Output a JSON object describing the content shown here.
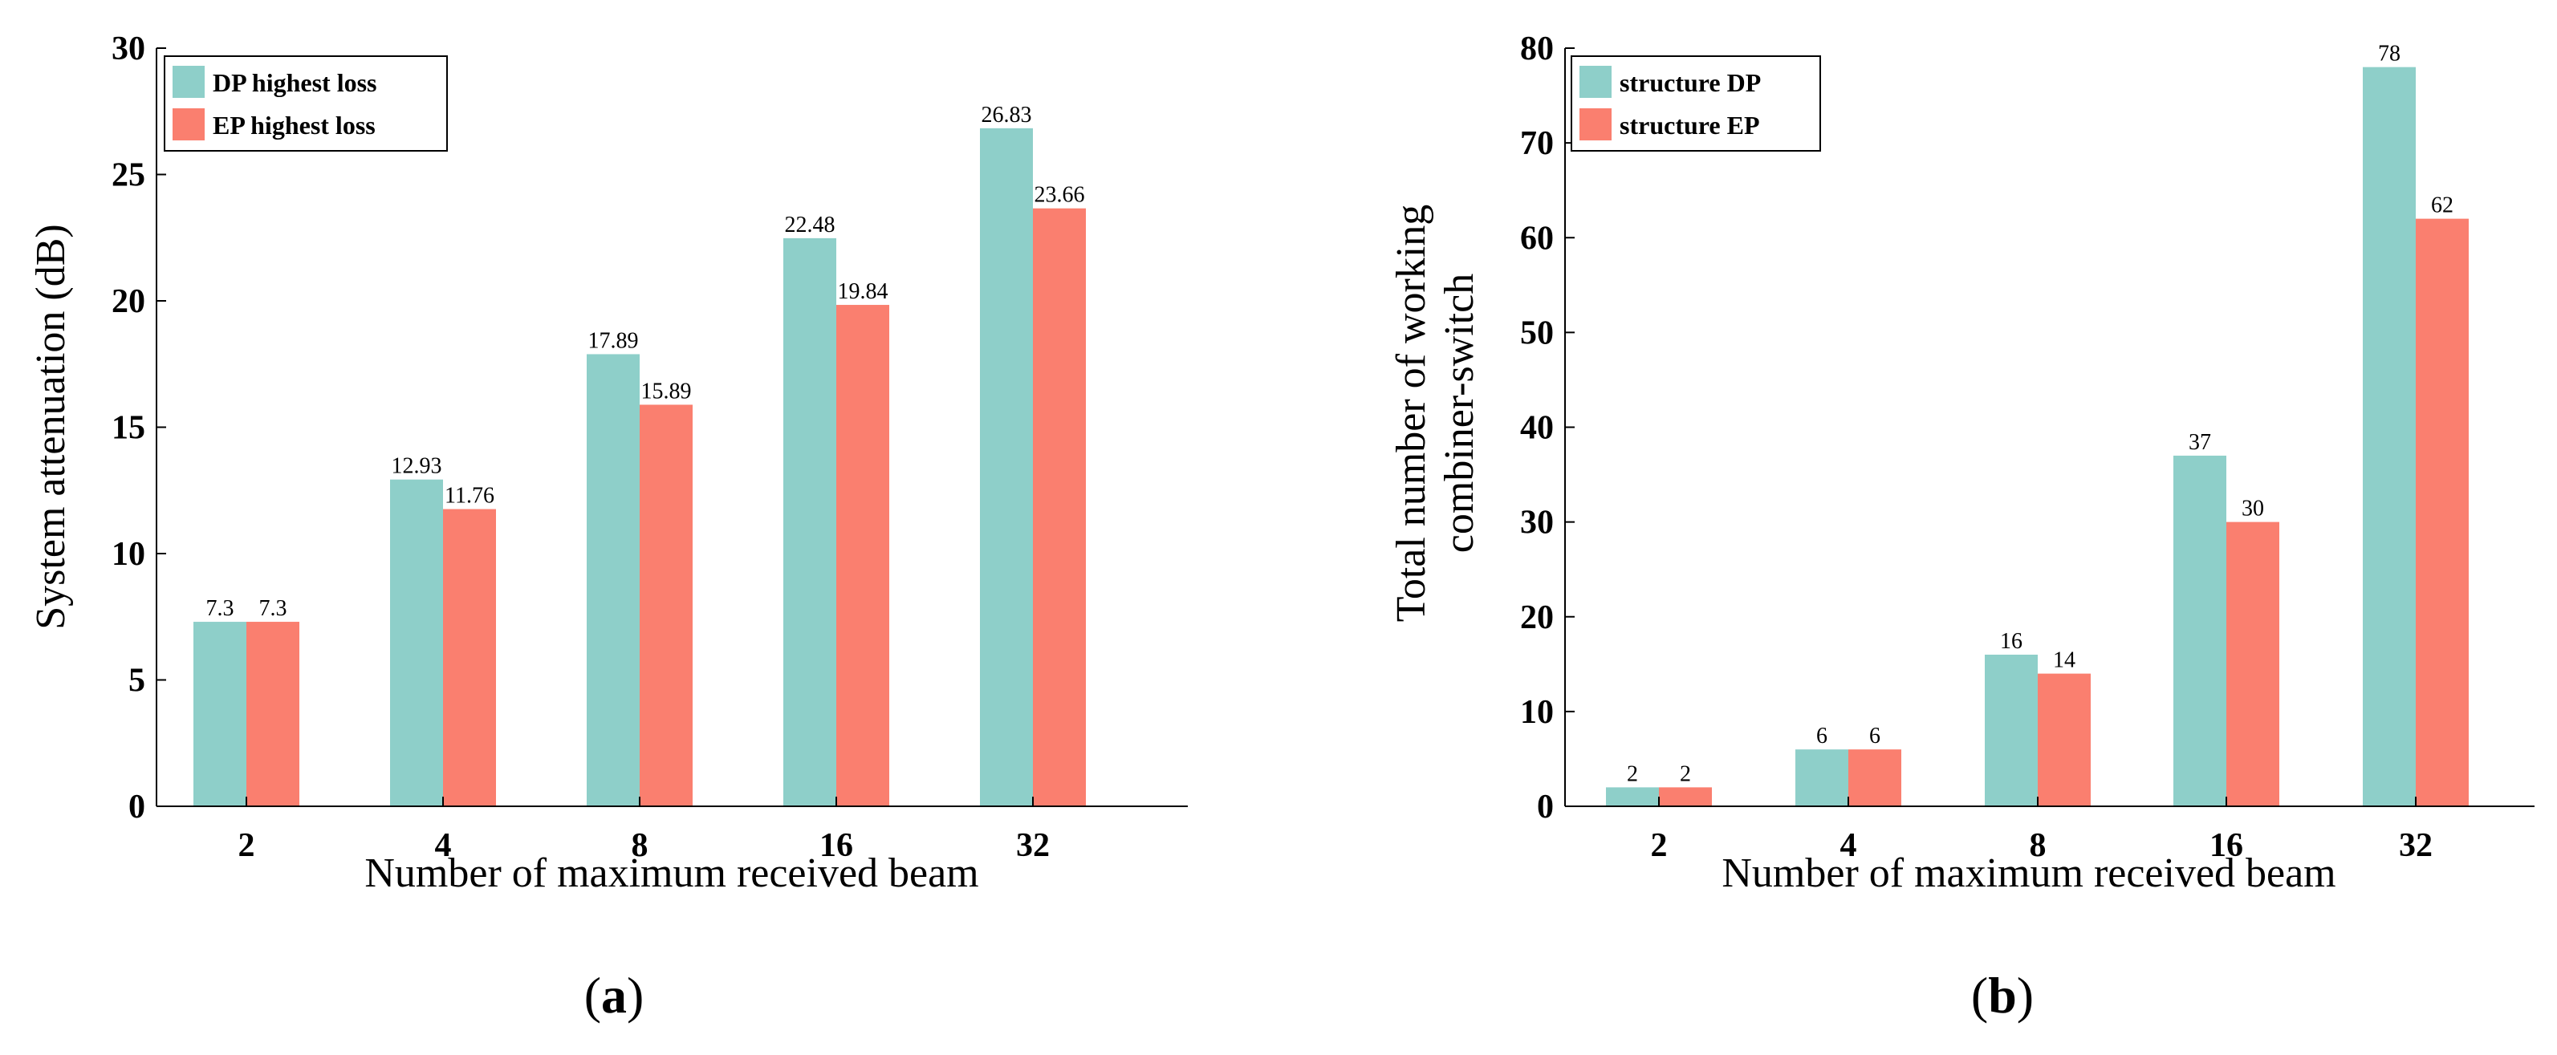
{
  "chart_data": [
    {
      "type": "bar",
      "panel_label": "(a)",
      "panel_letter": "a",
      "categories": [
        "2",
        "4",
        "8",
        "16",
        "32"
      ],
      "xlabel": "Number of maximum received beam",
      "ylabel": "System attenuation (dB)",
      "ylim": [
        0,
        30
      ],
      "yticks": [
        0,
        5,
        10,
        15,
        20,
        25,
        30
      ],
      "legend_position": "top-left",
      "series": [
        {
          "name": "DP highest loss",
          "color": "#8ECFC9",
          "values": [
            7.3,
            12.93,
            17.89,
            22.48,
            26.83
          ],
          "labels": [
            "7.3",
            "12.93",
            "17.89",
            "22.48",
            "26.83"
          ]
        },
        {
          "name": "EP highest loss",
          "color": "#FA7F6F",
          "values": [
            7.3,
            11.76,
            15.89,
            19.84,
            23.66
          ],
          "labels": [
            "7.3",
            "11.76",
            "15.89",
            "19.84",
            "23.66"
          ]
        }
      ]
    },
    {
      "type": "bar",
      "panel_label": "(b)",
      "panel_letter": "b",
      "categories": [
        "2",
        "4",
        "8",
        "16",
        "32"
      ],
      "xlabel": "Number of maximum received beam",
      "ylabel": "Total number of working",
      "ylabel_line2": "combiner-switch",
      "ylim": [
        0,
        80
      ],
      "yticks": [
        0,
        10,
        20,
        30,
        40,
        50,
        60,
        70,
        80
      ],
      "legend_position": "top-left",
      "series": [
        {
          "name": "structure DP",
          "color": "#8ECFC9",
          "values": [
            2,
            6,
            16,
            37,
            78
          ],
          "labels": [
            "2",
            "6",
            "16",
            "37",
            "78"
          ]
        },
        {
          "name": "structure EP",
          "color": "#FA7F6F",
          "values": [
            2,
            6,
            14,
            30,
            62
          ],
          "labels": [
            "2",
            "6",
            "14",
            "30",
            "62"
          ]
        }
      ]
    }
  ]
}
